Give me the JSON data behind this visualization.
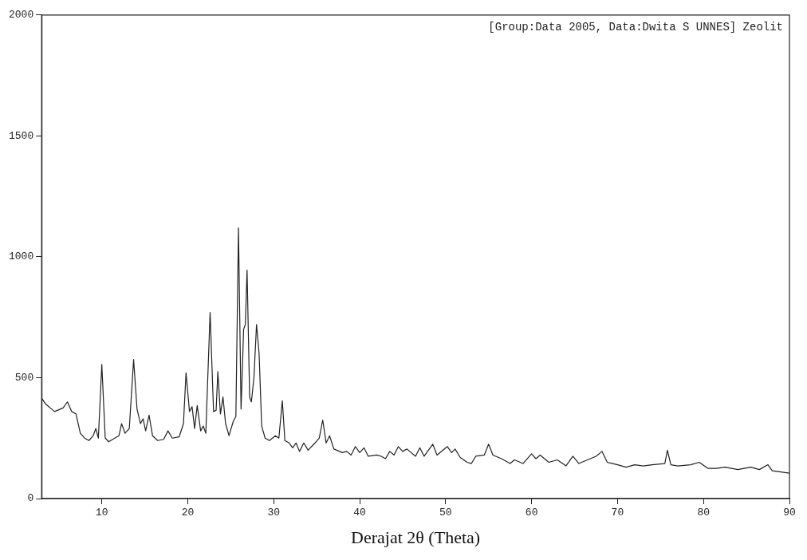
{
  "chart_data": {
    "type": "line",
    "xlabel": "Derajat 2θ (Theta)",
    "annotations": [
      "[Group:Data 2005, Data:Dwita S UNNES] Zeolit"
    ],
    "xlim": [
      3,
      90
    ],
    "xticks": [
      10,
      20,
      30,
      40,
      50,
      60,
      70,
      80,
      90
    ],
    "ylim": [
      0,
      2000
    ],
    "yticks": [
      0,
      500,
      1000,
      1500,
      2000
    ],
    "grid": false,
    "legend": false,
    "marker": "none",
    "line_style": "solid",
    "series": [
      {
        "color": "#222222",
        "x": [
          3,
          3.5,
          4.5,
          5.5,
          6,
          6.5,
          7,
          7.5,
          8,
          8.5,
          9,
          9.3,
          9.6,
          10,
          10.4,
          10.8,
          11.5,
          12,
          12.3,
          12.7,
          13.2,
          13.7,
          14.1,
          14.5,
          14.8,
          15.1,
          15.5,
          15.9,
          16.5,
          17.2,
          17.7,
          18.2,
          19,
          19.5,
          19.8,
          20.2,
          20.5,
          20.8,
          21.1,
          21.5,
          21.8,
          22.1,
          22.6,
          23,
          23.3,
          23.5,
          23.8,
          24.1,
          24.4,
          24.8,
          25.3,
          25.6,
          25.9,
          26.2,
          26.5,
          26.7,
          26.9,
          27.2,
          27.4,
          27.7,
          28,
          28.3,
          28.6,
          29,
          29.5,
          30.2,
          30.6,
          31,
          31.3,
          31.8,
          32.2,
          32.6,
          33,
          33.5,
          34,
          34.8,
          35.3,
          35.7,
          36.1,
          36.5,
          37,
          38,
          38.5,
          39,
          39.5,
          40,
          40.5,
          41,
          42,
          42.5,
          43,
          43.5,
          44,
          44.5,
          45,
          45.5,
          46.5,
          47,
          47.5,
          48.5,
          49,
          50.2,
          50.7,
          51.1,
          51.7,
          52.5,
          53,
          53.5,
          54.5,
          55,
          55.5,
          56.5,
          57.5,
          58,
          59,
          60,
          60.5,
          61,
          62,
          63,
          64,
          64.8,
          65.5,
          66.5,
          67.5,
          68.2,
          68.8,
          70,
          71,
          72,
          73,
          74,
          75.5,
          75.8,
          76.2,
          77,
          78.5,
          79.5,
          80.5,
          81.5,
          82.5,
          84,
          85.5,
          86.5,
          87.5,
          88,
          89,
          90
        ],
        "values": [
          415,
          390,
          360,
          375,
          400,
          360,
          350,
          270,
          250,
          240,
          260,
          290,
          250,
          555,
          250,
          235,
          250,
          260,
          310,
          270,
          290,
          575,
          370,
          310,
          330,
          280,
          345,
          260,
          240,
          245,
          280,
          250,
          255,
          310,
          520,
          360,
          380,
          290,
          385,
          280,
          300,
          270,
          770,
          360,
          365,
          525,
          350,
          420,
          310,
          260,
          320,
          340,
          1120,
          370,
          700,
          720,
          945,
          420,
          400,
          500,
          720,
          600,
          300,
          250,
          240,
          260,
          250,
          405,
          240,
          230,
          210,
          230,
          195,
          230,
          200,
          230,
          250,
          325,
          230,
          260,
          205,
          190,
          195,
          180,
          215,
          190,
          210,
          175,
          180,
          175,
          165,
          195,
          180,
          215,
          195,
          205,
          175,
          210,
          175,
          225,
          180,
          215,
          190,
          205,
          170,
          150,
          145,
          175,
          180,
          225,
          180,
          165,
          145,
          160,
          145,
          185,
          165,
          180,
          150,
          160,
          135,
          175,
          145,
          160,
          175,
          195,
          150,
          140,
          130,
          140,
          135,
          140,
          145,
          200,
          140,
          135,
          140,
          150,
          125,
          125,
          130,
          120,
          130,
          120,
          140,
          115,
          110,
          105
        ]
      }
    ]
  }
}
